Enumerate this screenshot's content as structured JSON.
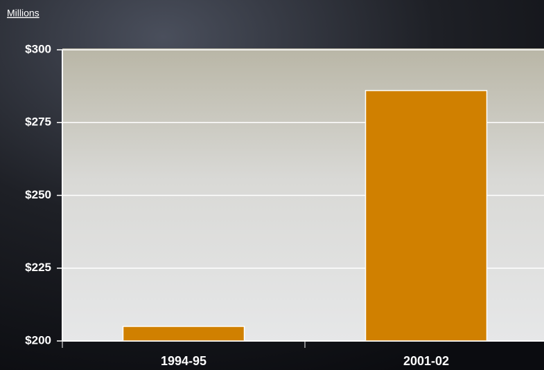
{
  "chart_data": {
    "type": "bar",
    "y_unit_label": "Millions",
    "categories": [
      "1994-95",
      "2001-02"
    ],
    "values": [
      205,
      286
    ],
    "color": "#d08000",
    "ylim": [
      200,
      300
    ],
    "yticks": [
      {
        "value": 200,
        "label": "$200"
      },
      {
        "value": 225,
        "label": "$225"
      },
      {
        "value": 250,
        "label": "$250"
      },
      {
        "value": 275,
        "label": "$275"
      },
      {
        "value": 300,
        "label": "$300"
      }
    ],
    "grid": true
  }
}
